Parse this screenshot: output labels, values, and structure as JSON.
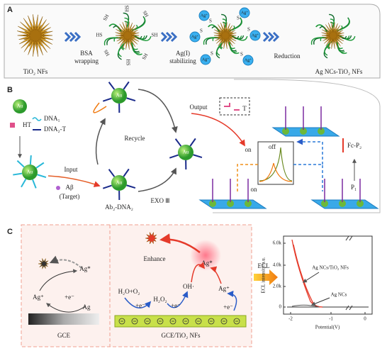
{
  "panel_a": {
    "label": "A",
    "start": "TiO₂ NFs",
    "step1": [
      "BSA",
      "wrapping"
    ],
    "step2": [
      "Ag(I)",
      "stabilizing"
    ],
    "step3": "Reduction",
    "product": "Ag NCs-TiO₂ NFs",
    "thiol": "SH",
    "thiol_rev": "HS",
    "silver_ion": "Ag⁺",
    "sulfur": "S"
  },
  "panel_b": {
    "label": "B",
    "au": "Au",
    "ht": "HT",
    "dna1": "DNA₁",
    "dna2t": "DNA₂-T",
    "input": "Input",
    "target": [
      "Aβ",
      "(Target)"
    ],
    "complex": "Ab₂-DNA₂",
    "recycle": "Recycle",
    "exo": "EXO Ⅲ",
    "output": "Output",
    "t": "T",
    "on": "on",
    "off": "off",
    "fc_p2": "Fc-P₂",
    "p1": "P₁"
  },
  "panel_c": {
    "label": "C",
    "gce": "GCE",
    "gce_tio2": "GCE/TiO₂ NFs",
    "ag_star": "Ag*",
    "ag_plus": "Ag⁺",
    "electron": "+e⁻",
    "ag": "Ag",
    "enhance": "Enhance",
    "h2o_o2": "H₂O+O₂",
    "h2o2": "H₂O₂",
    "oh": "OH·",
    "ecl": "ECL",
    "plot": {
      "y_label": "ECL intensity/a.u.",
      "x_label": "Potential(V)",
      "yticks": [
        "6.0k",
        "4.0k",
        "2.0k",
        "0"
      ],
      "xticks": [
        "-2",
        "-1",
        "0"
      ],
      "curve1": "Ag NCs/TiO₂ NFs",
      "curve2": "Ag NCs"
    }
  }
}
